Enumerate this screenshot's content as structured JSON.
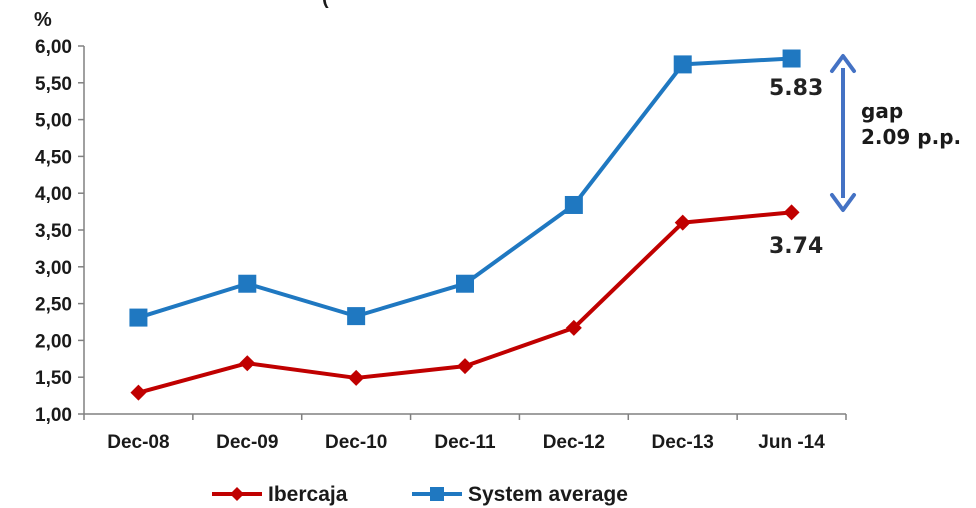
{
  "chart_data": {
    "type": "line",
    "title": "(",
    "ylabel": "%",
    "ylim": [
      1.0,
      6.0
    ],
    "ytick_labels": [
      "1,00",
      "1,50",
      "2,00",
      "2,50",
      "3,00",
      "3,50",
      "4,00",
      "4,50",
      "5,00",
      "5,50",
      "6,00"
    ],
    "categories": [
      "Dec-08",
      "Dec-09",
      "Dec-10",
      "Dec-11",
      "Dec-12",
      "Dec-13",
      "Jun -14"
    ],
    "series": [
      {
        "name": "Ibercaja",
        "color": "#c00000",
        "marker": "diamond",
        "values": [
          1.29,
          1.69,
          1.49,
          1.65,
          2.17,
          3.6,
          3.74
        ]
      },
      {
        "name": "System average",
        "color": "#1f78c1",
        "marker": "square",
        "values": [
          2.31,
          2.77,
          2.33,
          2.77,
          3.84,
          5.75,
          5.83
        ]
      }
    ],
    "annotations": {
      "ibercaja_last": "3.74",
      "system_last": "5.83",
      "gap_line1": "gap",
      "gap_line2": "2.09 p.p.",
      "gap_arrow_color": "#4472c4"
    },
    "grid": false,
    "legend_position": "bottom"
  }
}
